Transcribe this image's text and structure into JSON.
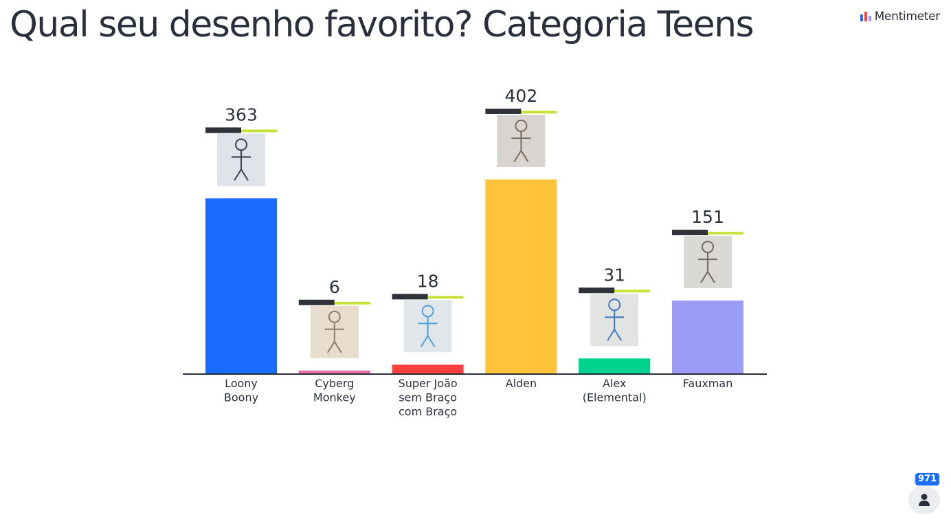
{
  "title": "Qual seu desenho favorito? Categoria Teens",
  "brand": {
    "name": "Mentimeter",
    "logo_icon": "mentimeter-logo-icon"
  },
  "participants": {
    "count": "971",
    "icon": "person-icon"
  },
  "chart_data": {
    "type": "bar",
    "categories": [
      [
        "Loony",
        "Boony"
      ],
      [
        "Cyberg",
        "Monkey"
      ],
      [
        "Super João",
        "sem Braço",
        "com Braço"
      ],
      [
        "Alden"
      ],
      [
        "Alex",
        "(Elemental)"
      ],
      [
        "Fauxman"
      ]
    ],
    "values": [
      363,
      6,
      18,
      402,
      31,
      151
    ],
    "colors": [
      "#196cff",
      "#e86fa6",
      "#ff403d",
      "#ffc43a",
      "#00d38e",
      "#9a9cf5"
    ],
    "images": [
      {
        "icon": "drawing-thumbnail-loony-boony",
        "bg": "#dfe3ea",
        "fg": "#3a3f4a"
      },
      {
        "icon": "drawing-thumbnail-cyberg-monkey",
        "bg": "#e8dccd",
        "fg": "#8a7d6a"
      },
      {
        "icon": "drawing-thumbnail-super-joao",
        "bg": "#e1e6ea",
        "fg": "#4e9fd6"
      },
      {
        "icon": "drawing-thumbnail-alden",
        "bg": "#d8d4cf",
        "fg": "#7a6a5c"
      },
      {
        "icon": "drawing-thumbnail-alex-elemental",
        "bg": "#e2e4e3",
        "fg": "#3e74c0"
      },
      {
        "icon": "drawing-thumbnail-fauxman",
        "bg": "#dad8d4",
        "fg": "#6f6c66"
      }
    ],
    "ylim": [
      0,
      402
    ],
    "xlabel": "",
    "ylabel": "",
    "grid": false,
    "legend": "none"
  }
}
